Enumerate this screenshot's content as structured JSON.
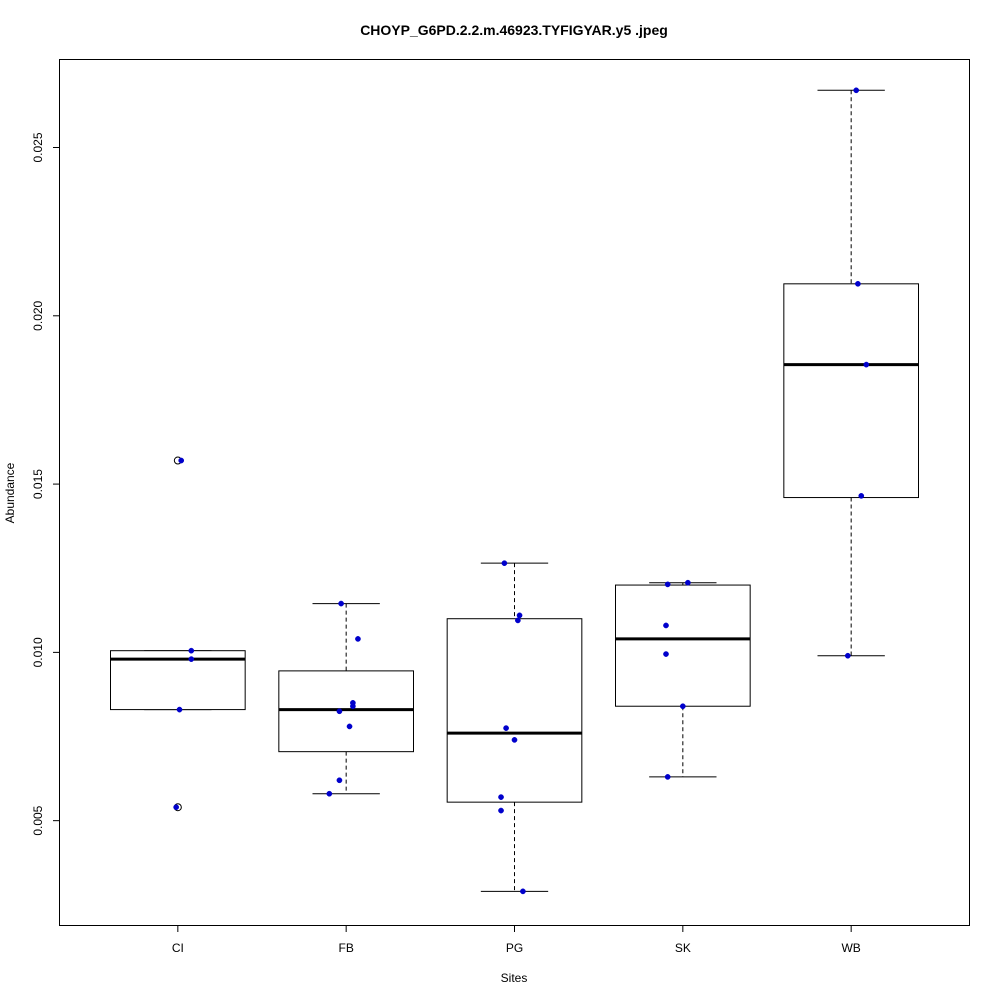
{
  "chart_data": {
    "type": "boxplot",
    "title": "CHOYP_G6PD.2.2.m.46923.TYFIGYAR.y5 .jpeg",
    "xlabel": "Sites",
    "ylabel": "Abundance",
    "ylim": [
      0.0019,
      0.0276
    ],
    "yticks": [
      0.005,
      0.01,
      0.015,
      0.02,
      0.025
    ],
    "ytick_labels": [
      "0.005",
      "0.010",
      "0.015",
      "0.020",
      "0.025"
    ],
    "grid": false,
    "categories": [
      "CI",
      "FB",
      "PG",
      "SK",
      "WB"
    ],
    "boxes": [
      {
        "category": "CI",
        "whisker_low": 0.0083,
        "q1": 0.0083,
        "median": 0.0098,
        "q3": 0.01005,
        "whisker_high": 0.01005,
        "outliers": [
          0.0157,
          0.0054
        ]
      },
      {
        "category": "FB",
        "whisker_low": 0.0058,
        "q1": 0.00705,
        "median": 0.0083,
        "q3": 0.00945,
        "whisker_high": 0.01145,
        "outliers": []
      },
      {
        "category": "PG",
        "whisker_low": 0.0029,
        "q1": 0.00555,
        "median": 0.0076,
        "q3": 0.011,
        "whisker_high": 0.01265,
        "outliers": []
      },
      {
        "category": "SK",
        "whisker_low": 0.0063,
        "q1": 0.0084,
        "median": 0.0104,
        "q3": 0.012,
        "whisker_high": 0.01207,
        "outliers": []
      },
      {
        "category": "WB",
        "whisker_low": 0.0099,
        "q1": 0.0146,
        "median": 0.01855,
        "q3": 0.02095,
        "whisker_high": 0.0267,
        "outliers": []
      }
    ],
    "points": [
      {
        "category": "CI",
        "jitter": 0.02,
        "y": 0.0157
      },
      {
        "category": "CI",
        "jitter": 0.08,
        "y": 0.01005
      },
      {
        "category": "CI",
        "jitter": 0.08,
        "y": 0.0098
      },
      {
        "category": "CI",
        "jitter": 0.01,
        "y": 0.0083
      },
      {
        "category": "CI",
        "jitter": -0.01,
        "y": 0.0054
      },
      {
        "category": "FB",
        "jitter": -0.03,
        "y": 0.01145
      },
      {
        "category": "FB",
        "jitter": 0.07,
        "y": 0.0104
      },
      {
        "category": "FB",
        "jitter": 0.04,
        "y": 0.0085
      },
      {
        "category": "FB",
        "jitter": 0.04,
        "y": 0.0084
      },
      {
        "category": "FB",
        "jitter": -0.04,
        "y": 0.00825
      },
      {
        "category": "FB",
        "jitter": 0.02,
        "y": 0.0078
      },
      {
        "category": "FB",
        "jitter": -0.04,
        "y": 0.0062
      },
      {
        "category": "FB",
        "jitter": -0.1,
        "y": 0.0058
      },
      {
        "category": "PG",
        "jitter": -0.06,
        "y": 0.01265
      },
      {
        "category": "PG",
        "jitter": 0.03,
        "y": 0.0111
      },
      {
        "category": "PG",
        "jitter": 0.02,
        "y": 0.01095
      },
      {
        "category": "PG",
        "jitter": -0.05,
        "y": 0.00775
      },
      {
        "category": "PG",
        "jitter": 0.0,
        "y": 0.0074
      },
      {
        "category": "PG",
        "jitter": -0.08,
        "y": 0.0057
      },
      {
        "category": "PG",
        "jitter": -0.08,
        "y": 0.0053
      },
      {
        "category": "PG",
        "jitter": 0.05,
        "y": 0.0029
      },
      {
        "category": "SK",
        "jitter": 0.03,
        "y": 0.01207
      },
      {
        "category": "SK",
        "jitter": -0.09,
        "y": 0.01202
      },
      {
        "category": "SK",
        "jitter": -0.1,
        "y": 0.0108
      },
      {
        "category": "SK",
        "jitter": -0.1,
        "y": 0.00995
      },
      {
        "category": "SK",
        "jitter": 0.0,
        "y": 0.0084
      },
      {
        "category": "SK",
        "jitter": -0.09,
        "y": 0.0063
      },
      {
        "category": "WB",
        "jitter": 0.03,
        "y": 0.0267
      },
      {
        "category": "WB",
        "jitter": 0.04,
        "y": 0.02095
      },
      {
        "category": "WB",
        "jitter": 0.09,
        "y": 0.01855
      },
      {
        "category": "WB",
        "jitter": 0.06,
        "y": 0.01465
      },
      {
        "category": "WB",
        "jitter": -0.02,
        "y": 0.0099
      }
    ],
    "colors": {
      "points": "#0000cc",
      "box": "#000000",
      "background": "#ffffff"
    }
  }
}
